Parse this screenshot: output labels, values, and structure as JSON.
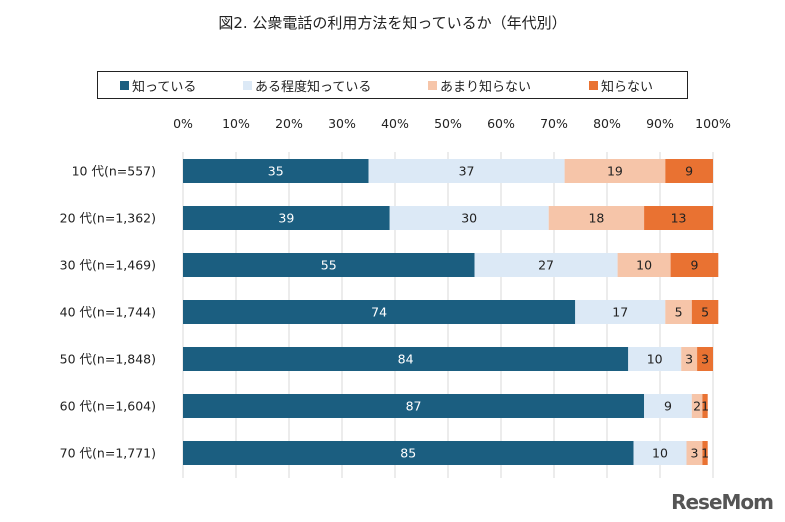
{
  "watermark": "ReseMom",
  "chart_data": {
    "type": "bar",
    "orientation": "horizontal-stacked-100",
    "title": "図2. 公衆電話の利用方法を知っているか（年代別）",
    "categories": [
      "10代(n=557)",
      "20代(n=1,362)",
      "30代(n=1,469)",
      "40代(n=1,744)",
      "50代(n=1,848)",
      "60代(n=1,604)",
      "70代(n=1,771)"
    ],
    "category_labels": [
      "10 代(n=557)",
      "20 代(n=1,362)",
      "30 代(n=1,469)",
      "40 代(n=1,744)",
      "50 代(n=1,848)",
      "60 代(n=1,604)",
      "70 代(n=1,771)"
    ],
    "series": [
      {
        "name": "知っている",
        "color": "#1b5e80",
        "values": [
          35,
          39,
          55,
          74,
          84,
          87,
          85
        ]
      },
      {
        "name": "ある程度知っている",
        "color": "#dce9f6",
        "values": [
          37,
          30,
          27,
          17,
          10,
          9,
          10
        ]
      },
      {
        "name": "あまり知らない",
        "color": "#f6c5a9",
        "values": [
          19,
          18,
          10,
          5,
          3,
          2,
          3
        ]
      },
      {
        "name": "知らない",
        "color": "#e97232",
        "values": [
          9,
          13,
          9,
          5,
          3,
          1,
          1
        ]
      }
    ],
    "xlim": [
      0,
      100
    ],
    "xticks": [
      "0%",
      "10%",
      "20%",
      "30%",
      "40%",
      "50%",
      "60%",
      "70%",
      "80%",
      "90%",
      "100%"
    ],
    "grid": true,
    "legend_position": "top"
  }
}
